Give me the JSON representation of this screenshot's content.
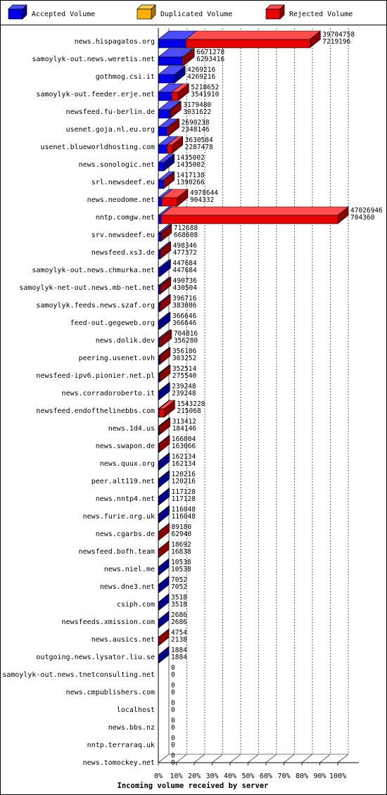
{
  "legend": [
    {
      "label": "Accepted Volume",
      "color": "#0000e6",
      "side": "#00008a",
      "top": "#4d4dff"
    },
    {
      "label": "Duplicated Volume",
      "color": "#ffb000",
      "side": "#a87400",
      "top": "#ffcc55"
    },
    {
      "label": "Rejected Volume",
      "color": "#e60000",
      "side": "#8a0000",
      "top": "#ff4d4d"
    }
  ],
  "chart_data": {
    "type": "bar",
    "orientation": "horizontal",
    "stacked_3d": true,
    "xlabel": "Incoming volume received by server",
    "xticks": [
      "0%",
      "10%",
      "20%",
      "30%",
      "40%",
      "50%",
      "60%",
      "70%",
      "80%",
      "90%",
      "100%"
    ],
    "max_total": 47026946,
    "grid": "vertical dashed",
    "series": [
      {
        "name": "Accepted Volume",
        "color": "#0000e6"
      },
      {
        "name": "Duplicated Volume",
        "color": "#ffb000"
      },
      {
        "name": "Rejected Volume",
        "color": "#e60000"
      }
    ],
    "rows": [
      {
        "name": "news.hispagatos.org",
        "total": "39704758",
        "accepted": "7219196"
      },
      {
        "name": "samoylyk-out.news.weretis.net",
        "total": "6671278",
        "accepted": "6293416"
      },
      {
        "name": "gothmog.csi.it",
        "total": "4269216",
        "accepted": "4269216"
      },
      {
        "name": "samoylyk-out.feeder.erje.net",
        "total": "5218652",
        "accepted": "3541910"
      },
      {
        "name": "newsfeed.fu-berlin.de",
        "total": "3179480",
        "accepted": "3031622"
      },
      {
        "name": "usenet.goja.nl.eu.org",
        "total": "2690238",
        "accepted": "2348146"
      },
      {
        "name": "usenet.blueworldhosting.com",
        "total": "3630584",
        "accepted": "2287478"
      },
      {
        "name": "news.sonologic.net",
        "total": "1435002",
        "accepted": "1435002"
      },
      {
        "name": "srl.newsdeef.eu",
        "total": "1417138",
        "accepted": "1390266"
      },
      {
        "name": "news.neodome.net",
        "total": "4978644",
        "accepted": "904332"
      },
      {
        "name": "nntp.comgw.net",
        "total": "47026946",
        "accepted": "704360"
      },
      {
        "name": "srv.newsdeef.eu",
        "total": "712688",
        "accepted": "668608"
      },
      {
        "name": "newsfeed.xs3.de",
        "total": "498346",
        "accepted": "477372"
      },
      {
        "name": "samoylyk-out.news.chmurka.net",
        "total": "447684",
        "accepted": "447684"
      },
      {
        "name": "samoylyk-net-out.news.mb-net.net",
        "total": "490736",
        "accepted": "430504"
      },
      {
        "name": "samoylyk.feeds.news.szaf.org",
        "total": "396716",
        "accepted": "383086"
      },
      {
        "name": "feed-out.gegeweb.org",
        "total": "366646",
        "accepted": "366646"
      },
      {
        "name": "news.dolik.dev",
        "total": "704816",
        "accepted": "356280"
      },
      {
        "name": "peering.usenet.ovh",
        "total": "356186",
        "accepted": "303252"
      },
      {
        "name": "newsfeed-ipv6.pionier.net.pl",
        "total": "352514",
        "accepted": "275540"
      },
      {
        "name": "news.corradoroberto.it",
        "total": "239248",
        "accepted": "239248"
      },
      {
        "name": "newsfeed.endofthelinebbs.com",
        "total": "1543228",
        "accepted": "215068"
      },
      {
        "name": "news.1d4.us",
        "total": "313412",
        "accepted": "184146"
      },
      {
        "name": "news.swapon.de",
        "total": "166004",
        "accepted": "163066"
      },
      {
        "name": "news.quux.org",
        "total": "162134",
        "accepted": "162134"
      },
      {
        "name": "peer.alt119.net",
        "total": "120216",
        "accepted": "120216"
      },
      {
        "name": "news.nntp4.net",
        "total": "117128",
        "accepted": "117128"
      },
      {
        "name": "news.furie.org.uk",
        "total": "116048",
        "accepted": "116048"
      },
      {
        "name": "news.cgarbs.de",
        "total": "89180",
        "accepted": "62940"
      },
      {
        "name": "newsfeed.bofh.team",
        "total": "18692",
        "accepted": "16838"
      },
      {
        "name": "news.niel.me",
        "total": "10538",
        "accepted": "10538"
      },
      {
        "name": "news.dne3.net",
        "total": "7052",
        "accepted": "7052"
      },
      {
        "name": "csiph.com",
        "total": "3518",
        "accepted": "3518"
      },
      {
        "name": "newsfeeds.xmission.com",
        "total": "2686",
        "accepted": "2686"
      },
      {
        "name": "news.ausics.net",
        "total": "4754",
        "accepted": "2138"
      },
      {
        "name": "outgoing.news.lysator.liu.se",
        "total": "1884",
        "accepted": "1884"
      },
      {
        "name": "samoylyk-out.news.tnetconsulting.net",
        "total": "0",
        "accepted": "0"
      },
      {
        "name": "news.cmpublishers.com",
        "total": "0",
        "accepted": "0"
      },
      {
        "name": "localhost",
        "total": "0",
        "accepted": "0"
      },
      {
        "name": "news.bbs.nz",
        "total": "0",
        "accepted": "0"
      },
      {
        "name": "nntp.terraraq.uk",
        "total": "0",
        "accepted": "0"
      },
      {
        "name": "news.tomockey.net",
        "total": "0",
        "accepted": "0"
      }
    ]
  }
}
